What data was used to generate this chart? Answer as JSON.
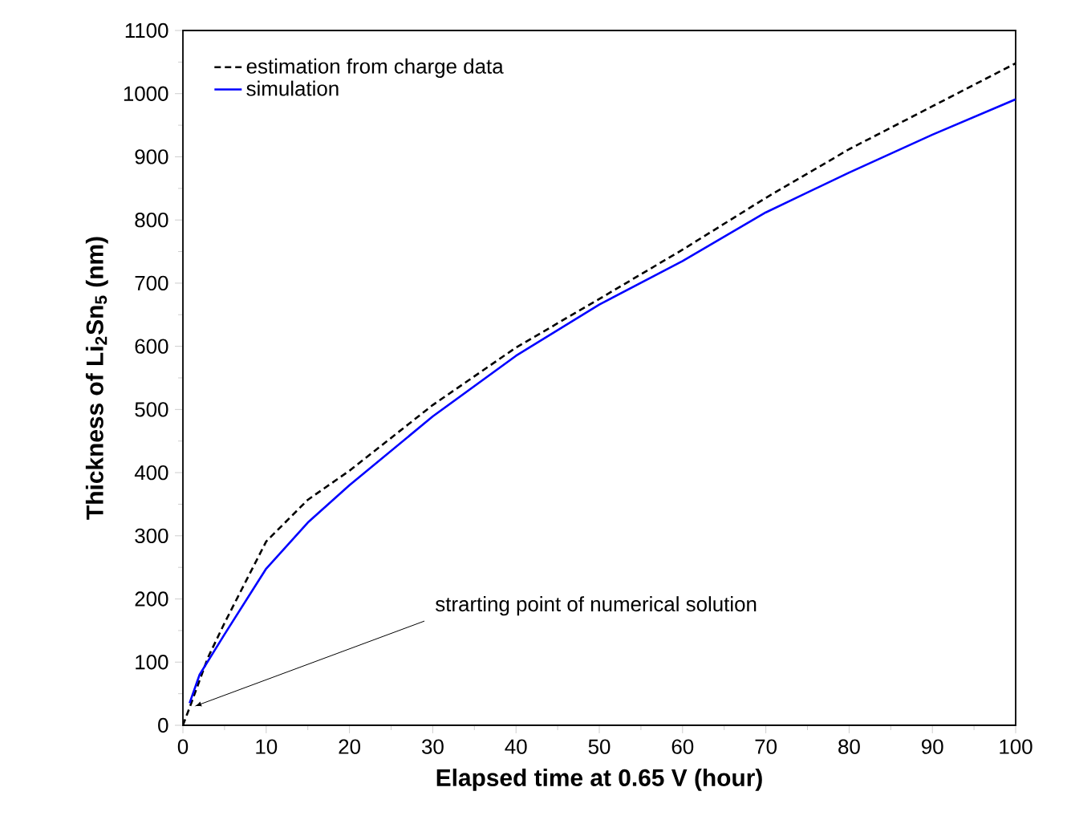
{
  "chart_data": {
    "type": "line",
    "xlabel": "Elapsed time at 0.65 V (hour)",
    "ylabel": "Thickness of Li$_{2}$Sn$_{5}$ (nm)",
    "xlim": [
      0,
      100
    ],
    "xticks": [
      0,
      10,
      20,
      30,
      40,
      50,
      60,
      70,
      80,
      90,
      100
    ],
    "ylim": [
      0,
      1100
    ],
    "yticks": [
      0,
      100,
      200,
      300,
      400,
      500,
      600,
      700,
      800,
      900,
      1000,
      1100
    ],
    "grid": false,
    "legend": "top left",
    "marker": "none",
    "series": [
      {
        "name": "estimation from charge data",
        "color": "#000000",
        "line_style": "dashed",
        "x": [
          0,
          1,
          2,
          3,
          5,
          10,
          15,
          20,
          30,
          40,
          50,
          60,
          70,
          80,
          90,
          100
        ],
        "values": [
          0,
          35,
          71,
          107,
          162,
          291,
          357,
          403,
          507,
          598,
          675,
          753,
          835,
          912,
          980,
          1048
        ]
      },
      {
        "name": "simulation",
        "color": "#0000ff",
        "line_style": "solid",
        "x": [
          0.8,
          2,
          5,
          10,
          15,
          20,
          30,
          40,
          50,
          60,
          70,
          80,
          90,
          100
        ],
        "values": [
          35,
          80,
          144,
          248,
          321,
          380,
          489,
          585,
          666,
          735,
          812,
          875,
          935,
          991
        ]
      }
    ],
    "annotations": [
      {
        "text": "strarting point of numerical solution",
        "x": 0.8,
        "y": 35
      }
    ]
  }
}
